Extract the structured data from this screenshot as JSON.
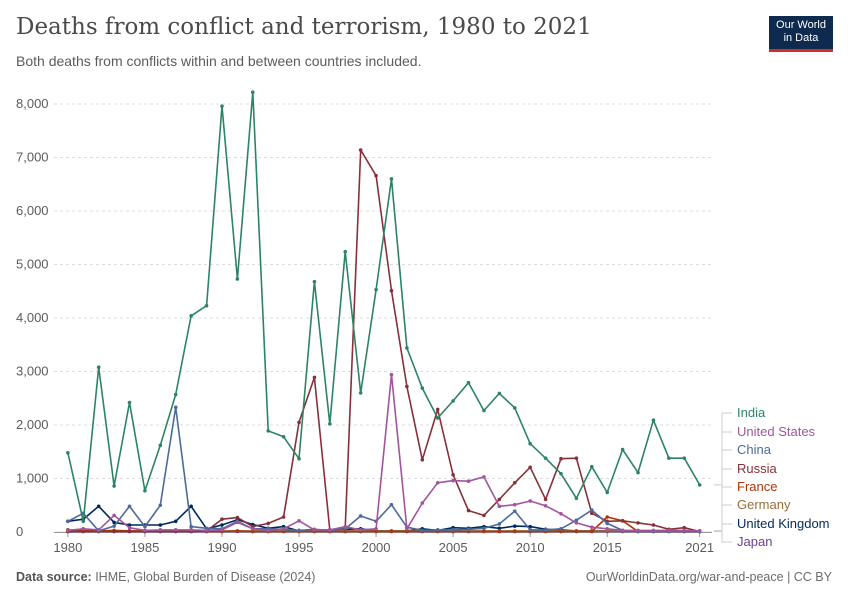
{
  "header": {
    "title": "Deaths from conflict and terrorism, 1980 to 2021",
    "subtitle": "Both deaths from conflicts within and between countries included."
  },
  "logo": {
    "line1": "Our World",
    "line2": "in Data"
  },
  "footer": {
    "source_label": "Data source:",
    "source_text": " IHME, Global Burden of Disease (2024)",
    "attribution": "OurWorldinData.org/war-and-peace | CC BY"
  },
  "chart_data": {
    "type": "line",
    "title": "Deaths from conflict and terrorism, 1980 to 2021",
    "subtitle": "Both deaths from conflicts within and between countries included.",
    "xlabel": "",
    "ylabel": "",
    "xlim": [
      1980,
      2021
    ],
    "ylim": [
      0,
      8000
    ],
    "y_ticks": [
      0,
      1000,
      2000,
      3000,
      4000,
      5000,
      6000,
      7000,
      8000
    ],
    "y_tick_labels": [
      "0",
      "1,000",
      "2,000",
      "3,000",
      "4,000",
      "5,000",
      "6,000",
      "7,000",
      "8,000"
    ],
    "x_ticks": [
      1980,
      1985,
      1990,
      1995,
      2000,
      2005,
      2010,
      2015,
      2021
    ],
    "x_tick_labels": [
      "1980",
      "1985",
      "1990",
      "1995",
      "2000",
      "2005",
      "2010",
      "2015",
      "2021"
    ],
    "grid": "horizontal dashed",
    "legend_position": "right",
    "x": [
      1980,
      1981,
      1982,
      1983,
      1984,
      1985,
      1986,
      1987,
      1988,
      1989,
      1990,
      1991,
      1992,
      1993,
      1994,
      1995,
      1996,
      1997,
      1998,
      1999,
      2000,
      2001,
      2002,
      2003,
      2004,
      2005,
      2006,
      2007,
      2008,
      2009,
      2010,
      2011,
      2012,
      2013,
      2014,
      2015,
      2016,
      2017,
      2018,
      2019,
      2020,
      2021
    ],
    "series": [
      {
        "name": "India",
        "color": "#2c8465",
        "values": [
          1480,
          200,
          3080,
          860,
          2420,
          770,
          1620,
          2570,
          4040,
          4230,
          7960,
          4730,
          8220,
          1890,
          1780,
          1370,
          4680,
          2020,
          5240,
          2600,
          4530,
          6600,
          3440,
          2690,
          2130,
          2450,
          2790,
          2270,
          2590,
          2320,
          1650,
          1380,
          1090,
          630,
          1220,
          740,
          1540,
          1110,
          2090,
          1380,
          1380,
          880
        ]
      },
      {
        "name": "United States",
        "color": "#a2559c",
        "values": [
          30,
          60,
          40,
          310,
          80,
          30,
          40,
          40,
          40,
          30,
          40,
          180,
          60,
          30,
          60,
          210,
          40,
          40,
          100,
          40,
          60,
          2940,
          60,
          540,
          920,
          960,
          950,
          1030,
          480,
          510,
          580,
          490,
          340,
          170,
          90,
          60,
          30,
          30,
          30,
          30,
          30,
          20
        ]
      },
      {
        "name": "China",
        "color": "#4c6a9c",
        "values": [
          200,
          350,
          20,
          110,
          480,
          100,
          500,
          2330,
          100,
          70,
          60,
          200,
          60,
          60,
          50,
          30,
          50,
          30,
          60,
          300,
          200,
          510,
          90,
          30,
          40,
          40,
          50,
          70,
          150,
          390,
          40,
          40,
          60,
          220,
          410,
          160,
          30,
          10,
          10,
          10,
          10,
          10
        ]
      },
      {
        "name": "Russia",
        "color": "#883039",
        "values": [
          10,
          10,
          10,
          10,
          10,
          10,
          10,
          10,
          10,
          20,
          240,
          270,
          100,
          160,
          280,
          2050,
          2890,
          40,
          70,
          7140,
          6660,
          4510,
          2720,
          1350,
          2290,
          1070,
          400,
          310,
          610,
          920,
          1210,
          610,
          1370,
          1380,
          350,
          200,
          210,
          170,
          130,
          50,
          80,
          10
        ]
      },
      {
        "name": "France",
        "color": "#b13507",
        "values": [
          40,
          30,
          20,
          30,
          20,
          20,
          30,
          20,
          20,
          10,
          10,
          20,
          10,
          10,
          10,
          10,
          10,
          10,
          10,
          10,
          10,
          10,
          10,
          10,
          10,
          10,
          10,
          10,
          10,
          10,
          10,
          10,
          10,
          10,
          10,
          280,
          210,
          10,
          10,
          10,
          10,
          10
        ]
      },
      {
        "name": "Germany",
        "color": "#996d39",
        "values": [
          20,
          20,
          20,
          20,
          20,
          20,
          20,
          20,
          20,
          20,
          20,
          20,
          20,
          20,
          20,
          20,
          20,
          20,
          20,
          20,
          20,
          20,
          20,
          20,
          20,
          20,
          20,
          20,
          20,
          20,
          20,
          20,
          20,
          20,
          20,
          20,
          20,
          20,
          20,
          20,
          20,
          20
        ]
      },
      {
        "name": "United Kingdom",
        "color": "#00295b",
        "values": [
          200,
          240,
          480,
          180,
          130,
          130,
          130,
          200,
          480,
          60,
          130,
          230,
          140,
          70,
          100,
          20,
          30,
          40,
          50,
          60,
          20,
          20,
          20,
          60,
          30,
          80,
          70,
          100,
          70,
          110,
          100,
          50,
          40,
          20,
          20,
          20,
          20,
          20,
          20,
          20,
          20,
          20
        ]
      },
      {
        "name": "Japan",
        "color": "#6d3e91",
        "values": [
          10,
          10,
          10,
          10,
          10,
          10,
          10,
          10,
          10,
          10,
          10,
          10,
          10,
          10,
          10,
          30,
          10,
          10,
          10,
          10,
          10,
          10,
          10,
          10,
          10,
          10,
          10,
          10,
          10,
          10,
          10,
          10,
          10,
          10,
          10,
          10,
          10,
          10,
          10,
          10,
          10,
          10
        ]
      }
    ]
  }
}
